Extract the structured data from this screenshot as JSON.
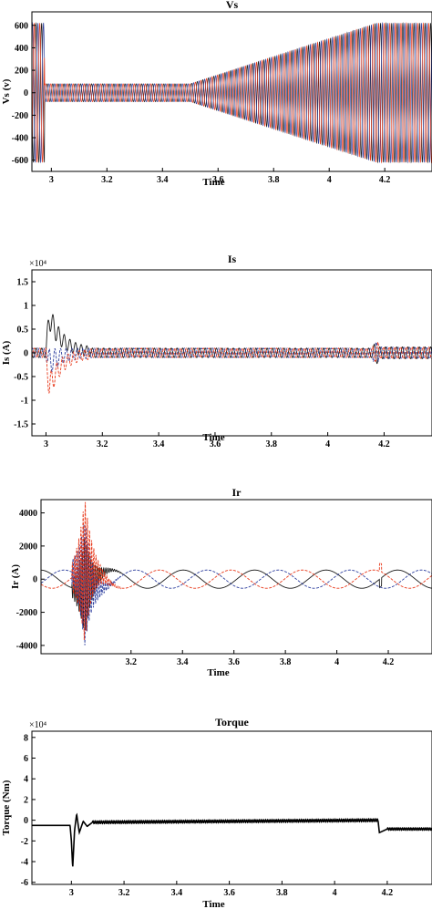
{
  "colors": {
    "phase_a": "#1a1a1a",
    "phase_b": "#2e3f9e",
    "phase_c": "#e8391b",
    "torque": "#000000"
  },
  "chart_data": [
    {
      "id": "vs",
      "type": "line",
      "title": "Vs",
      "xlabel": "Time",
      "ylabel": "Vs (v)",
      "exponent": "",
      "xlim": [
        2.93,
        4.37
      ],
      "ylim": [
        -700,
        720
      ],
      "xticks": [
        3,
        3.2,
        3.4,
        3.6,
        3.8,
        4,
        4.2
      ],
      "xticklabels": [
        "3",
        "3.2",
        "3.4",
        "3.6",
        "3.8",
        "4",
        "4.2"
      ],
      "yticks": [
        600,
        400,
        200,
        0,
        -200,
        -400,
        -600
      ],
      "yticklabels": [
        "600",
        "400",
        "200",
        "0",
        "-200",
        "-400",
        "-600"
      ],
      "signal": "three-phase sinusoid",
      "envelope_amplitude": [
        [
          2.93,
          620
        ],
        [
          2.975,
          620
        ],
        [
          2.976,
          80
        ],
        [
          3.5,
          80
        ],
        [
          4.17,
          620
        ],
        [
          4.37,
          620
        ]
      ],
      "series": [
        {
          "phase_offset_deg": 0
        },
        {
          "phase_offset_deg": -120
        },
        {
          "phase_offset_deg": 120
        }
      ]
    },
    {
      "id": "is",
      "type": "line",
      "title": "Is",
      "xlabel": "Time",
      "ylabel": "Is (A)",
      "exponent": "×10⁴",
      "xlim": [
        2.95,
        4.37
      ],
      "ylim": [
        -1.75,
        1.75
      ],
      "xticks": [
        3,
        3.2,
        3.4,
        3.6,
        3.8,
        4,
        4.2
      ],
      "xticklabels": [
        "3",
        "3.2",
        "3.4",
        "3.6",
        "3.8",
        "4",
        "4.2"
      ],
      "yticks": [
        1.5,
        1,
        0.5,
        0,
        -0.5,
        -1,
        -1.5
      ],
      "yticklabels": [
        "1.5",
        "1",
        "0.5",
        "0",
        "-0.5",
        "-1",
        "-1.5"
      ],
      "signal": "three-phase current with start-up transient",
      "steady_amplitude": 0.1,
      "transient_peak": {
        "time": 3.01,
        "high": 1.15,
        "low": -1.3
      },
      "disturbance_time": 4.17,
      "series": [
        {
          "phase_offset_deg": 0
        },
        {
          "phase_offset_deg": -120
        },
        {
          "phase_offset_deg": 120
        }
      ]
    },
    {
      "id": "ir",
      "type": "line",
      "title": "Ir",
      "xlabel": "Time",
      "ylabel": "Ir (A)",
      "exponent": "",
      "xlim": [
        2.85,
        4.37
      ],
      "ylim": [
        -4500,
        4800
      ],
      "xticks": [
        3.2,
        3.4,
        3.6,
        3.8,
        4,
        4.2
      ],
      "xticklabels": [
        "3.2",
        "3.4",
        "3.6",
        "3.8",
        "4",
        "4.2"
      ],
      "yticks": [
        4000,
        2000,
        0,
        -2000,
        -4000
      ],
      "yticklabels": [
        "4000",
        "2000",
        "0",
        "-2000",
        "-4000"
      ],
      "signal": "three-phase low-frequency rotor current with start-up transient",
      "steady_amplitude": 550,
      "transient_peak": {
        "time": 3.02,
        "high": 4500,
        "low": -3900
      },
      "disturbance_time": 4.17,
      "series": [
        {
          "phase_offset_deg": 0
        },
        {
          "phase_offset_deg": -120
        },
        {
          "phase_offset_deg": 120
        }
      ]
    },
    {
      "id": "torque",
      "type": "line",
      "title": "Torque",
      "xlabel": "Time",
      "ylabel": "Torque (Nm)",
      "exponent": "×10⁴",
      "xlim": [
        2.85,
        4.37
      ],
      "ylim": [
        -6.2,
        8.6
      ],
      "xticks": [
        3,
        3.2,
        3.4,
        3.6,
        3.8,
        4,
        4.2
      ],
      "xticklabels": [
        "3",
        "3.2",
        "3.4",
        "3.6",
        "3.8",
        "4",
        "4.2"
      ],
      "yticks": [
        8,
        6,
        4,
        2,
        0,
        -2,
        -4,
        -6
      ],
      "yticklabels": [
        "8",
        "6",
        "4",
        "2",
        "0",
        "-2",
        "-4",
        "-6"
      ],
      "signal": "electromagnetic torque",
      "points": [
        [
          2.85,
          -0.5
        ],
        [
          2.995,
          -0.5
        ],
        [
          3.0,
          -2.0
        ],
        [
          3.005,
          -4.6
        ],
        [
          3.012,
          -1.0
        ],
        [
          3.02,
          0.6
        ],
        [
          3.03,
          -1.2
        ],
        [
          3.045,
          -0.1
        ],
        [
          3.06,
          -0.6
        ],
        [
          3.08,
          -0.2
        ],
        [
          4.165,
          0.0
        ],
        [
          4.17,
          -1.2
        ],
        [
          4.2,
          -0.85
        ],
        [
          4.37,
          -0.85
        ]
      ]
    }
  ]
}
